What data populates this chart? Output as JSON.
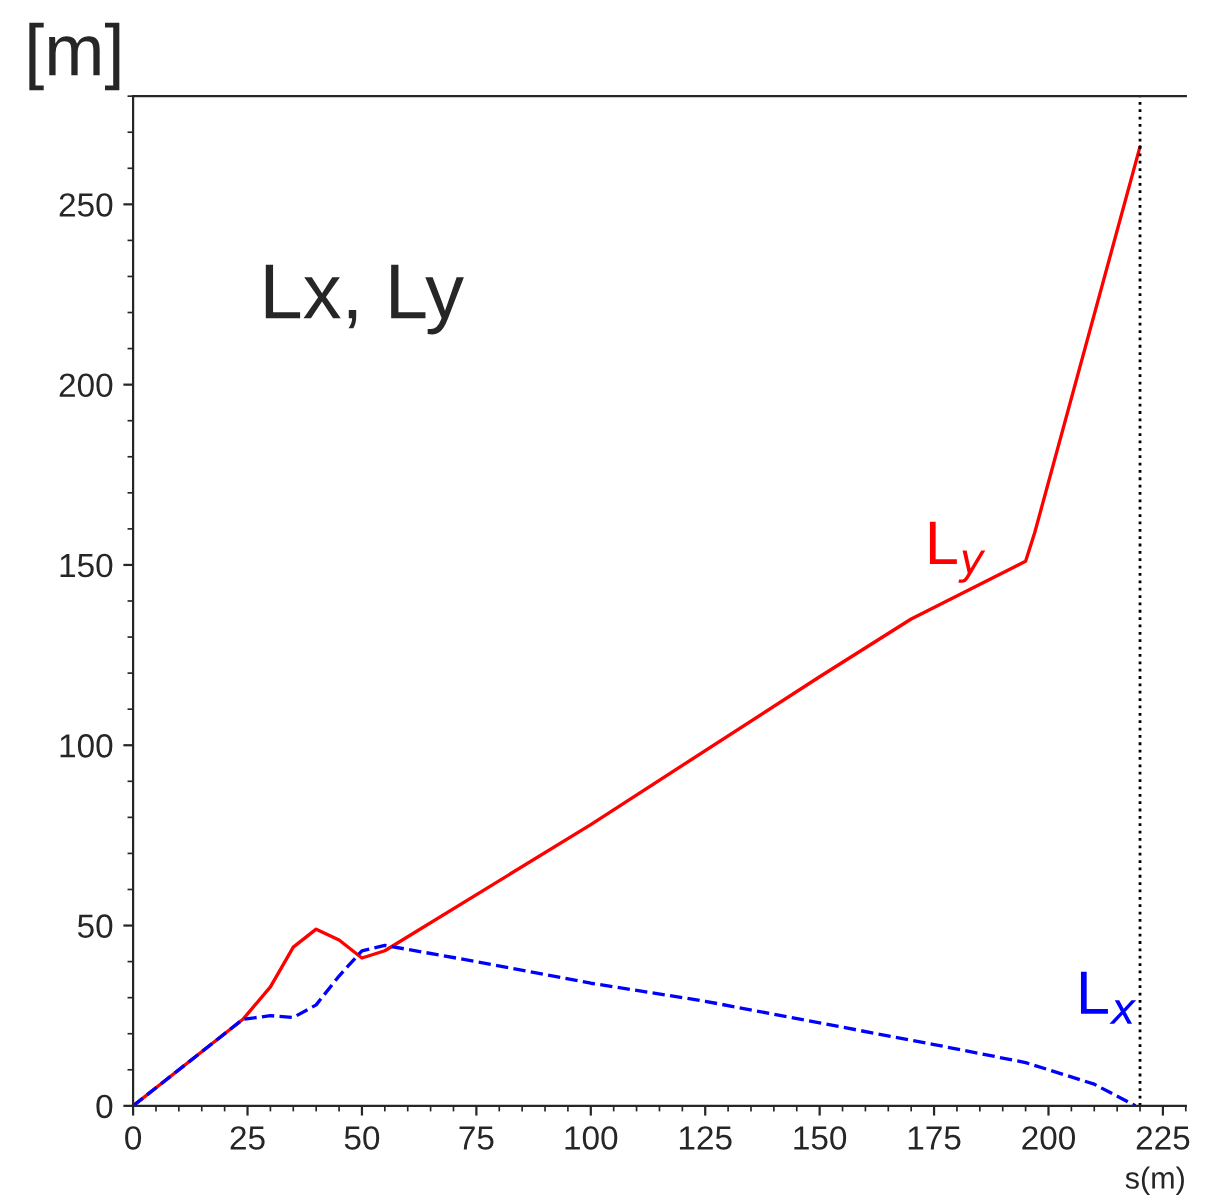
{
  "chart_data": {
    "type": "line",
    "ylabel": "[m]",
    "xlabel": "s(m)",
    "annotations": [
      "Lx, Ly"
    ],
    "series": [
      {
        "name": "L$_{y}$",
        "color": "#ff0000",
        "line_style": "solid",
        "x": [
          0,
          24,
          30,
          35,
          40,
          45,
          50,
          55,
          100,
          150,
          170,
          195,
          197,
          220
        ],
        "values": [
          0,
          24,
          33,
          44,
          49,
          46,
          41,
          43,
          78,
          119,
          135,
          151,
          159,
          266
        ]
      },
      {
        "name": "L$_{x}$",
        "color": "#0000ff",
        "line_style": "dashed",
        "x": [
          0,
          24,
          30,
          35,
          40,
          45,
          50,
          55,
          75,
          100,
          125,
          150,
          175,
          195,
          200,
          210,
          219
        ],
        "values": [
          0,
          24,
          25,
          24.5,
          28,
          36,
          43,
          44.5,
          40,
          34,
          29,
          23,
          17,
          12,
          10,
          6,
          0
        ]
      }
    ],
    "ref_lines": [
      {
        "axis": "x",
        "value": 220,
        "color": "#000000",
        "line_style": "dotted"
      }
    ],
    "xlim": [
      0,
      230
    ],
    "ylim": [
      0,
      280
    ],
    "xticks": [
      0,
      25,
      50,
      75,
      100,
      125,
      150,
      175,
      200,
      225
    ],
    "yticks": [
      0,
      50,
      100,
      150,
      200,
      250
    ],
    "grid": false,
    "legend": false
  }
}
